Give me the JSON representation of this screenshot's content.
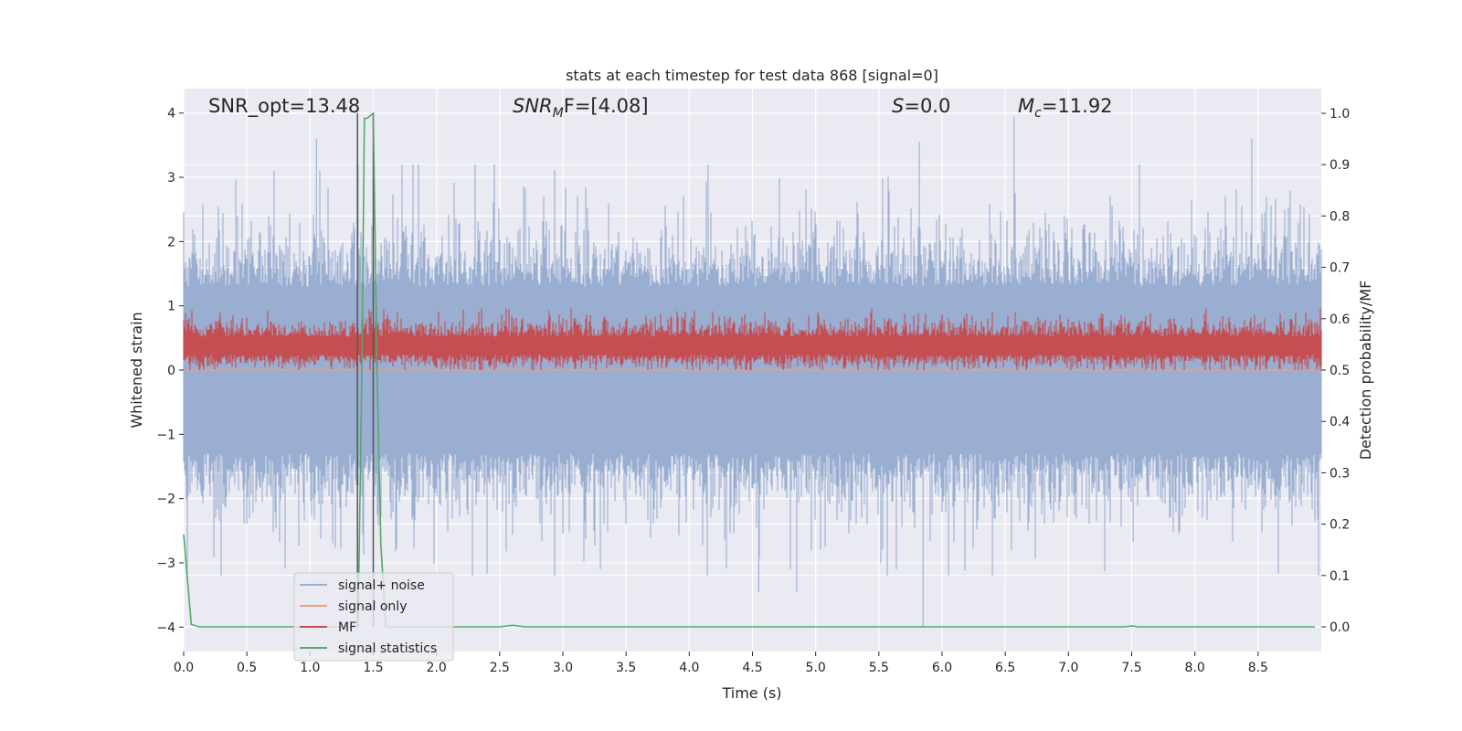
{
  "chart_data": {
    "type": "line",
    "title": "stats at each timestep for test data 868 [signal=0]",
    "xlabel": "Time (s)",
    "ylabel": "Whitened strain",
    "y2label": "Detection probability/MF",
    "xlim": [
      0.0,
      9.0
    ],
    "ylim": [
      -4.38,
      4.38
    ],
    "y2lim": [
      -0.048,
      1.048
    ],
    "x_ticks": [
      "0.0",
      "0.5",
      "1.0",
      "1.5",
      "2.0",
      "2.5",
      "3.0",
      "3.5",
      "4.0",
      "4.5",
      "5.0",
      "5.5",
      "6.0",
      "6.5",
      "7.0",
      "7.5",
      "8.0",
      "8.5"
    ],
    "y_ticks": [
      "4",
      "3",
      "2",
      "1",
      "0",
      "−1",
      "−2",
      "−3",
      "−4"
    ],
    "y2_ticks": [
      "1.0",
      "0.9",
      "0.8",
      "0.7",
      "0.6",
      "0.5",
      "0.4",
      "0.3",
      "0.2",
      "0.1",
      "0.0"
    ],
    "grid": true,
    "legend_position": "lower-left",
    "annotations": {
      "snr_opt": "SNR_opt=13.48",
      "snr_mf_main": "SNR",
      "snr_mf_sub": "M",
      "snr_mf_rest": "F=[4.08]",
      "s_main": "S",
      "s_rest": "=0.0",
      "mc_main": "M",
      "mc_sub": "c",
      "mc_rest": "=11.92"
    },
    "series": [
      {
        "name": "signal+ noise",
        "color": "#9aaed1",
        "axis": "left",
        "approx_range": [
          -4.0,
          3.95
        ],
        "peaks": [
          [
            1.05,
            3.6
          ],
          [
            5.82,
            3.55
          ],
          [
            6.57,
            3.95
          ],
          [
            8.45,
            3.6
          ],
          [
            4.55,
            -3.45
          ],
          [
            5.85,
            -4.0
          ],
          [
            4.85,
            -3.45
          ]
        ]
      },
      {
        "name": "signal only",
        "color": "#ee9e82",
        "axis": "left",
        "values": "zero"
      },
      {
        "name": "MF",
        "color": "#c44e52",
        "axis": "right",
        "approx_range": [
          0.5,
          0.62
        ]
      },
      {
        "name": "signal statistics",
        "color": "#55a868",
        "axis": "right",
        "x": [
          0.0,
          0.06,
          0.12,
          0.5,
          1.0,
          1.3,
          1.38,
          1.41,
          1.43,
          1.45,
          1.5,
          1.53,
          1.56,
          1.6,
          2.0,
          2.5,
          2.6,
          2.7,
          3.0,
          5.0,
          7.0,
          7.45,
          7.5,
          7.55,
          8.0,
          8.95
        ],
        "y": [
          0.18,
          0.005,
          0.0,
          0.0,
          0.0,
          0.0,
          0.0,
          0.5,
          0.99,
          0.99,
          1.0,
          0.5,
          0.16,
          0.0,
          0.0,
          0.0,
          0.003,
          0.0,
          0.0,
          0.0,
          0.0,
          0.0,
          0.002,
          0.0,
          0.0,
          0.0
        ]
      }
    ],
    "markers": [
      {
        "x": 1.375,
        "color": "#555555",
        "from": 4.0,
        "to": -4.0
      },
      {
        "x": 1.5,
        "color": "#555555",
        "from": 4.0,
        "to": -4.0
      }
    ]
  }
}
